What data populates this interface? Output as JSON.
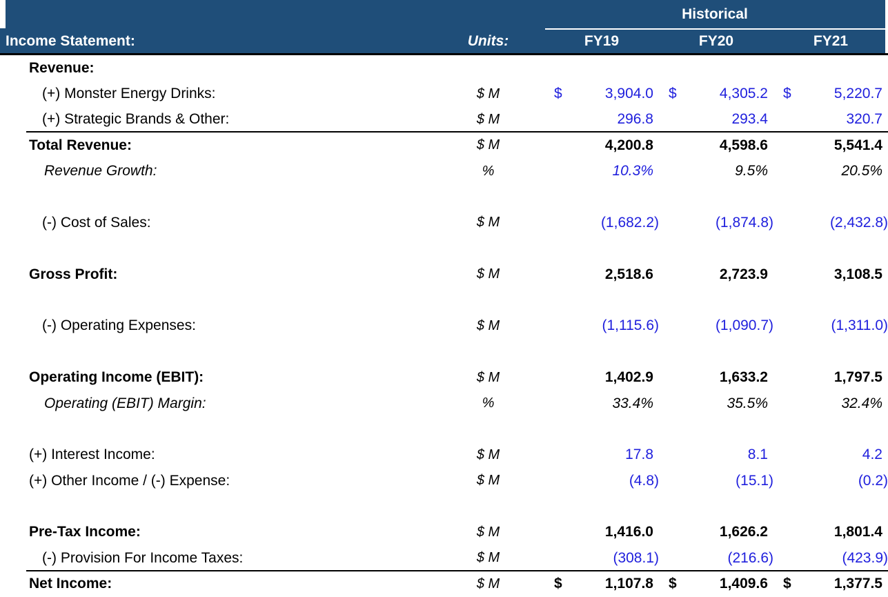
{
  "title": "Income Statement model (historical)",
  "currency_symbol": "$",
  "colors": {
    "header_bg": "#1f4e79",
    "header_text": "#ffffff",
    "input_blue": "#2020dd",
    "text_black": "#000000"
  },
  "header": {
    "group_label": "Historical",
    "row_label": "Income Statement:",
    "units_label": "Units:",
    "columns": [
      "FY19",
      "FY20",
      "FY21"
    ]
  },
  "rows": [
    {
      "label": "Revenue:",
      "indent": 0,
      "label_bold": true,
      "units": "",
      "values": [
        "",
        "",
        ""
      ]
    },
    {
      "label": "(+) Monster Energy Drinks:",
      "indent": 1,
      "units": "$ M",
      "dollar": true,
      "value_color": "blue",
      "values": [
        "3,904.0",
        "4,305.2",
        "5,220.7"
      ]
    },
    {
      "label": "(+) Strategic Brands & Other:",
      "indent": 1,
      "units": "$ M",
      "value_color": "blue",
      "values": [
        "296.8",
        "293.4",
        "320.7"
      ],
      "border_bottom": true
    },
    {
      "label": "Total Revenue:",
      "indent": 0,
      "label_bold": true,
      "units": "$ M",
      "value_bold": true,
      "values": [
        "4,200.8",
        "4,598.6",
        "5,541.4"
      ]
    },
    {
      "label": "Revenue Growth:",
      "indent": 2,
      "label_italic": true,
      "units": "%",
      "value_italic": true,
      "value_colors": [
        "blue",
        "black",
        "black"
      ],
      "values": [
        "10.3%",
        "9.5%",
        "20.5%"
      ]
    },
    {
      "blank": true
    },
    {
      "label": "(-) Cost of Sales:",
      "indent": 1,
      "units": "$ M",
      "value_color": "blue",
      "values": [
        "(1,682.2)",
        "(1,874.8)",
        "(2,432.8)"
      ]
    },
    {
      "blank": true
    },
    {
      "label": "Gross Profit:",
      "indent": 0,
      "label_bold": true,
      "units": "$ M",
      "value_bold": true,
      "values": [
        "2,518.6",
        "2,723.9",
        "3,108.5"
      ]
    },
    {
      "blank": true
    },
    {
      "label": "(-) Operating Expenses:",
      "indent": 1,
      "units": "$ M",
      "value_color": "blue",
      "values": [
        "(1,115.6)",
        "(1,090.7)",
        "(1,311.0)"
      ]
    },
    {
      "blank": true
    },
    {
      "label": "Operating Income (EBIT):",
      "indent": 0,
      "label_bold": true,
      "units": "$ M",
      "value_bold": true,
      "values": [
        "1,402.9",
        "1,633.2",
        "1,797.5"
      ]
    },
    {
      "label": "Operating (EBIT) Margin:",
      "indent": 2,
      "label_italic": true,
      "units": "%",
      "value_italic": true,
      "values": [
        "33.4%",
        "35.5%",
        "32.4%"
      ]
    },
    {
      "blank": true
    },
    {
      "label": "(+) Interest Income:",
      "indent": 0,
      "units": "$ M",
      "value_color": "blue",
      "values": [
        "17.8",
        "8.1",
        "4.2"
      ]
    },
    {
      "label": "(+) Other Income / (-) Expense:",
      "indent": 0,
      "units": "$ M",
      "value_color": "blue",
      "values": [
        "(4.8)",
        "(15.1)",
        "(0.2)"
      ]
    },
    {
      "blank": true
    },
    {
      "label": "Pre-Tax Income:",
      "indent": 0,
      "label_bold": true,
      "units": "$ M",
      "value_bold": true,
      "values": [
        "1,416.0",
        "1,626.2",
        "1,801.4"
      ]
    },
    {
      "label": "(-) Provision For Income Taxes:",
      "indent": 1,
      "units": "$ M",
      "value_color": "blue",
      "values": [
        "(308.1)",
        "(216.6)",
        "(423.9)"
      ],
      "border_bottom": true
    },
    {
      "label": "Net Income:",
      "indent": 0,
      "label_bold": true,
      "units": "$ M",
      "dollar": true,
      "value_bold": true,
      "values": [
        "1,107.8",
        "1,409.6",
        "1,377.5"
      ]
    }
  ]
}
